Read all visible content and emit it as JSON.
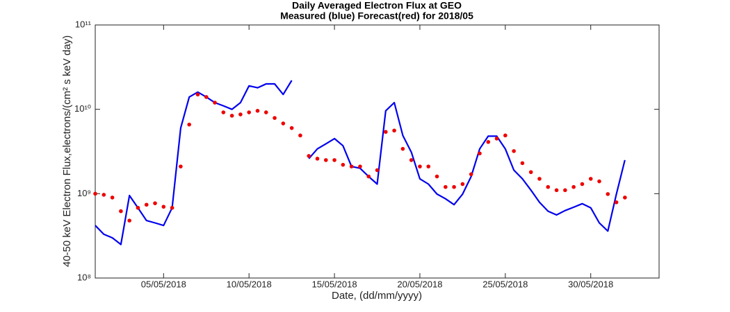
{
  "chart_data": {
    "type": "line",
    "title": "Daily Averaged Electron Flux at GEO",
    "subtitle": "Measured (blue) Forecast(red) for 2018/05",
    "xlabel": "Date, (dd/mm/yyyy)",
    "ylabel": "40-50 keV Electron Flux,electrons/(cm² s keV day)",
    "yscale": "log",
    "xlim": [
      "2018-05-01T00:00",
      "2018-06-03T00:00"
    ],
    "xticks": [
      {
        "value": "2018-05-05T00:00",
        "label": "05/05/2018"
      },
      {
        "value": "2018-05-10T00:00",
        "label": "10/05/2018"
      },
      {
        "value": "2018-05-15T00:00",
        "label": "15/05/2018"
      },
      {
        "value": "2018-05-20T00:00",
        "label": "20/05/2018"
      },
      {
        "value": "2018-05-25T00:00",
        "label": "25/05/2018"
      },
      {
        "value": "2018-05-30T00:00",
        "label": "30/05/2018"
      }
    ],
    "ylim": [
      100000000,
      100000000000
    ],
    "yticks": [
      {
        "value": 100000000,
        "label": "10⁸"
      },
      {
        "value": 1000000000,
        "label": "10⁹"
      },
      {
        "value": 10000000000,
        "label": "10¹⁰"
      },
      {
        "value": 100000000000,
        "label": "10¹¹"
      }
    ],
    "x": [
      "2018-05-01T00:00",
      "2018-05-01T12:00",
      "2018-05-02T00:00",
      "2018-05-02T12:00",
      "2018-05-03T00:00",
      "2018-05-03T12:00",
      "2018-05-04T00:00",
      "2018-05-04T12:00",
      "2018-05-05T00:00",
      "2018-05-05T12:00",
      "2018-05-06T00:00",
      "2018-05-06T12:00",
      "2018-05-07T00:00",
      "2018-05-07T12:00",
      "2018-05-08T00:00",
      "2018-05-08T12:00",
      "2018-05-09T00:00",
      "2018-05-09T12:00",
      "2018-05-10T00:00",
      "2018-05-10T12:00",
      "2018-05-11T00:00",
      "2018-05-11T12:00",
      "2018-05-12T00:00",
      "2018-05-12T12:00",
      "2018-05-13T00:00",
      "2018-05-13T12:00",
      "2018-05-14T00:00",
      "2018-05-14T12:00",
      "2018-05-15T00:00",
      "2018-05-15T12:00",
      "2018-05-16T00:00",
      "2018-05-16T12:00",
      "2018-05-17T00:00",
      "2018-05-17T12:00",
      "2018-05-18T00:00",
      "2018-05-18T12:00",
      "2018-05-19T00:00",
      "2018-05-19T12:00",
      "2018-05-20T00:00",
      "2018-05-20T12:00",
      "2018-05-21T00:00",
      "2018-05-21T12:00",
      "2018-05-22T00:00",
      "2018-05-22T12:00",
      "2018-05-23T00:00",
      "2018-05-23T12:00",
      "2018-05-24T00:00",
      "2018-05-24T12:00",
      "2018-05-25T00:00",
      "2018-05-25T12:00",
      "2018-05-26T00:00",
      "2018-05-26T12:00",
      "2018-05-27T00:00",
      "2018-05-27T12:00",
      "2018-05-28T00:00",
      "2018-05-28T12:00",
      "2018-05-29T00:00",
      "2018-05-29T12:00",
      "2018-05-30T00:00",
      "2018-05-30T12:00",
      "2018-05-31T00:00",
      "2018-05-31T12:00",
      "2018-06-01T00:00"
    ],
    "series": [
      {
        "color": "#0000ee",
        "style": "line",
        "values": [
          420000000.0,
          330000000.0,
          300000000.0,
          250000000.0,
          950000000.0,
          680000000.0,
          480000000.0,
          450000000.0,
          420000000.0,
          680000000.0,
          6000000000.0,
          14000000000.0,
          16000000000.0,
          14000000000.0,
          12000000000.0,
          11000000000.0,
          10000000000.0,
          12000000000.0,
          19000000000.0,
          18000000000.0,
          20000000000.0,
          20000000000.0,
          15000000000.0,
          22000000000.0,
          null,
          2600000000.0,
          3400000000.0,
          3900000000.0,
          4500000000.0,
          3700000000.0,
          2100000000.0,
          2000000000.0,
          1600000000.0,
          1300000000.0,
          9600000000.0,
          12000000000.0,
          4900000000.0,
          3100000000.0,
          1500000000.0,
          1300000000.0,
          990000000.0,
          870000000.0,
          740000000.0,
          990000000.0,
          1600000000.0,
          3400000000.0,
          4800000000.0,
          4800000000.0,
          3400000000.0,
          1900000000.0,
          1500000000.0,
          1100000000.0,
          790000000.0,
          620000000.0,
          560000000.0,
          630000000.0,
          690000000.0,
          760000000.0,
          680000000.0,
          450000000.0,
          360000000.0,
          990000000.0,
          2500000000.0
        ]
      },
      {
        "color": "#ee0000",
        "style": "markers",
        "values": [
          1000000000.0,
          970000000.0,
          900000000.0,
          620000000.0,
          480000000.0,
          680000000.0,
          740000000.0,
          770000000.0,
          700000000.0,
          680000000.0,
          2100000000.0,
          6600000000.0,
          15000000000.0,
          14000000000.0,
          12000000000.0,
          9200000000.0,
          8400000000.0,
          8700000000.0,
          9200000000.0,
          9600000000.0,
          9200000000.0,
          7900000000.0,
          6800000000.0,
          6000000000.0,
          4900000000.0,
          2800000000.0,
          2600000000.0,
          2500000000.0,
          2500000000.0,
          2200000000.0,
          2100000000.0,
          2100000000.0,
          1600000000.0,
          1900000000.0,
          5400000000.0,
          5600000000.0,
          3400000000.0,
          2500000000.0,
          2100000000.0,
          2100000000.0,
          1600000000.0,
          1200000000.0,
          1200000000.0,
          1300000000.0,
          1700000000.0,
          3000000000.0,
          4100000000.0,
          4500000000.0,
          4900000000.0,
          3200000000.0,
          2300000000.0,
          1800000000.0,
          1500000000.0,
          1200000000.0,
          1100000000.0,
          1100000000.0,
          1200000000.0,
          1300000000.0,
          1500000000.0,
          1400000000.0,
          990000000.0,
          790000000.0,
          900000000.0
        ]
      }
    ]
  }
}
